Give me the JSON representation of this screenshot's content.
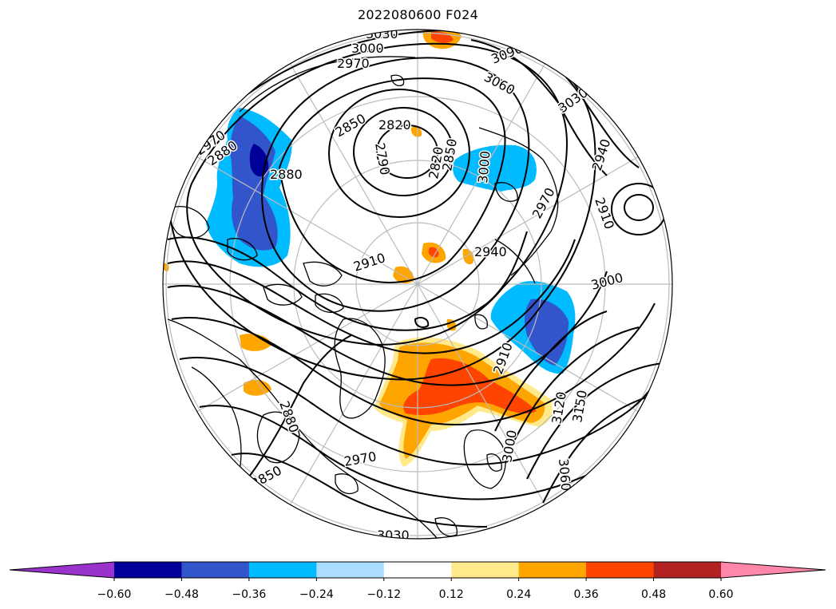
{
  "title": "2022080600 F024",
  "colorbar": {
    "colors": [
      "#9933cc",
      "#000099",
      "#3355cc",
      "#00bbff",
      "#aaddff",
      "#ffffff",
      "#ffe98a",
      "#ffa500",
      "#ff4400",
      "#b22222",
      "#ff88aa"
    ],
    "tick_labels": [
      "−0.60",
      "−0.48",
      "−0.36",
      "−0.24",
      "−0.12",
      "0.12",
      "0.24",
      "0.36",
      "0.48",
      "0.60"
    ],
    "extend": "both"
  },
  "contour_labels": [
    "3030",
    "3000",
    "2970",
    "3090",
    "3060",
    "3030",
    "2820",
    "2850",
    "2790",
    "2820",
    "2850",
    "2880",
    "3000",
    "2970",
    "2940",
    "2910",
    "2970",
    "2880",
    "2910",
    "2940",
    "3000",
    "2910",
    "2880",
    "2850",
    "2970",
    "3120",
    "3150",
    "3060",
    "3000",
    "3030"
  ],
  "map": {
    "projection": "north polar stereographic",
    "contour_color": "#000000",
    "grid_color": "#bbbbbb",
    "coast_color": "#000000"
  }
}
